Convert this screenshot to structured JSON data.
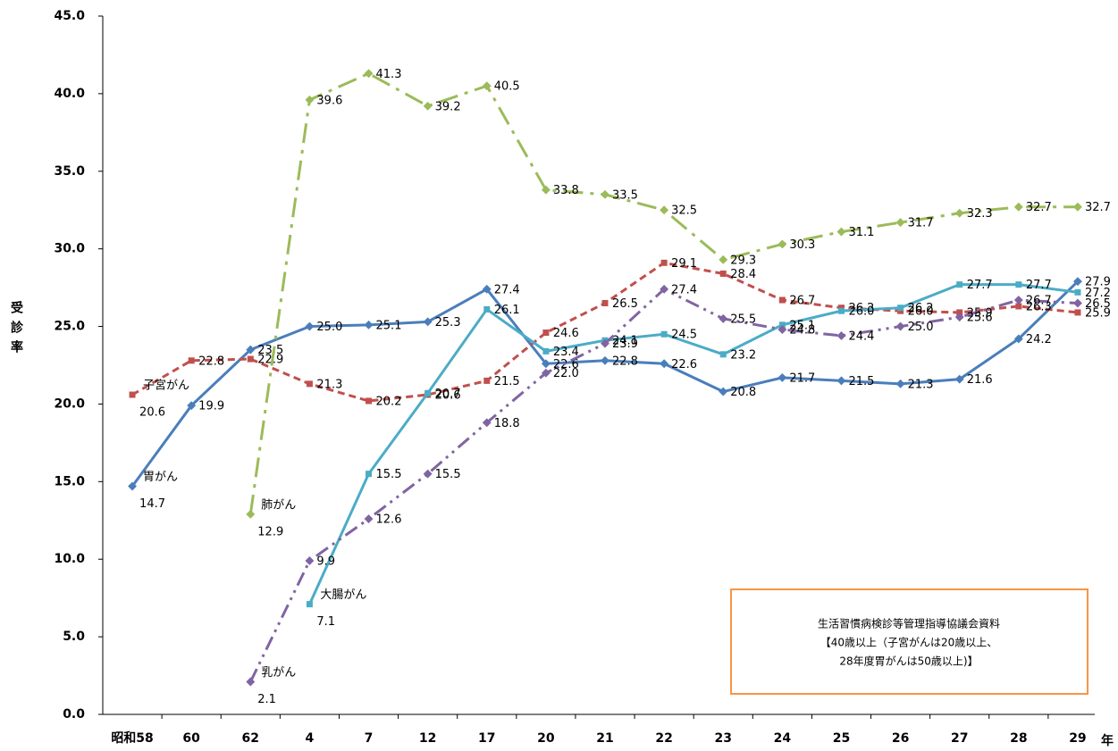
{
  "chart_data": {
    "type": "line",
    "y_label": "受診率",
    "x_label": "年",
    "categories": [
      "昭和58",
      "60",
      "62",
      "4",
      "7",
      "12",
      "17",
      "20",
      "21",
      "22",
      "23",
      "24",
      "25",
      "26",
      "27",
      "28",
      "29"
    ],
    "ylim": [
      0,
      45
    ],
    "yticks": [
      {
        "value": 0,
        "label": "0.0"
      },
      {
        "value": 5,
        "label": "5.0"
      },
      {
        "value": 10,
        "label": "10.0"
      },
      {
        "value": 15,
        "label": "15.0"
      },
      {
        "value": 20,
        "label": "20.0"
      },
      {
        "value": 25,
        "label": "25.0"
      },
      {
        "value": 30,
        "label": "30.0"
      },
      {
        "value": 35,
        "label": "35.0"
      },
      {
        "value": 40,
        "label": "40.0"
      },
      {
        "value": 45,
        "label": "45.0"
      }
    ],
    "series": [
      {
        "name": "胃がん",
        "color": "#4a7ebb",
        "dash": "none",
        "values": [
          14.7,
          19.9,
          23.5,
          25.0,
          25.1,
          25.3,
          27.4,
          22.6,
          22.8,
          22.6,
          20.8,
          21.7,
          21.5,
          21.3,
          21.6,
          24.2,
          27.9
        ],
        "value_labels": [
          "14.7",
          "19.9",
          "23.5",
          "25.0",
          "25.1",
          "25.3",
          "27.4",
          "22.6",
          "22.8",
          "22.6",
          "20.8",
          "21.7",
          "21.5",
          "21.3",
          "21.6",
          "24.2",
          "27.9"
        ]
      },
      {
        "name": "子宮がん",
        "color": "#c0504d",
        "dash": "8,5",
        "values": [
          20.6,
          22.8,
          22.9,
          21.3,
          20.2,
          20.6,
          21.5,
          24.6,
          26.5,
          29.1,
          28.4,
          26.7,
          26.2,
          26.0,
          25.9,
          26.3,
          25.9
        ],
        "value_labels": [
          "20.6",
          "22.8",
          "22.9",
          "21.3",
          "20.2",
          "20.6",
          "21.5",
          "24.6",
          "26.5",
          "29.1",
          "28.4",
          "26.7",
          "26.2",
          "26.0",
          "25.9",
          "26.3",
          "25.9"
        ]
      },
      {
        "name": "肺がん",
        "color": "#9bbb59",
        "dash": "22,8,4,8",
        "values": [
          null,
          null,
          12.9,
          39.6,
          41.3,
          39.2,
          40.5,
          33.8,
          33.5,
          32.5,
          29.3,
          30.3,
          31.1,
          31.7,
          32.3,
          32.7,
          32.7
        ],
        "value_labels": [
          null,
          null,
          "12.9",
          "39.6",
          "41.3",
          "39.2",
          "40.5",
          "33.8",
          "33.5",
          "32.5",
          "29.3",
          "30.3",
          "31.1",
          "31.7",
          "32.3",
          "32.7",
          "32.7"
        ]
      },
      {
        "name": "大腸がん",
        "color": "#4bacc6",
        "dash": "none",
        "values": [
          null,
          null,
          null,
          7.1,
          15.5,
          20.7,
          26.1,
          23.4,
          24.1,
          24.5,
          23.2,
          25.1,
          26.0,
          26.2,
          27.7,
          27.7,
          27.2
        ],
        "value_labels": [
          null,
          null,
          null,
          "7.1",
          "15.5",
          "20.7",
          "26.1",
          "23.4",
          "24.1",
          "24.5",
          "23.2",
          "25.1",
          "26.0",
          "26.2",
          "27.7",
          "27.7",
          "27.2"
        ]
      },
      {
        "name": "乳がん",
        "color": "#8064a2",
        "dash": "16,6,3,6,3,6",
        "values": [
          null,
          null,
          2.1,
          9.9,
          12.6,
          15.5,
          18.8,
          22.0,
          23.9,
          27.4,
          25.5,
          24.8,
          24.4,
          25.0,
          25.6,
          26.7,
          26.5
        ],
        "value_labels": [
          null,
          null,
          "2.1",
          "9.9",
          "12.6",
          "15.5",
          "18.8",
          "22.0",
          "23.9",
          "27.4",
          "25.5",
          "24.8",
          "24.4",
          "25.0",
          "25.6",
          "26.7",
          "26.5"
        ]
      }
    ],
    "annotation": [
      "生活習慣病検診等管理指導協議会資料",
      "【40歳以上（子宮がんは20歳以上、",
      "28年度胃がんは50歳以上)】"
    ]
  }
}
